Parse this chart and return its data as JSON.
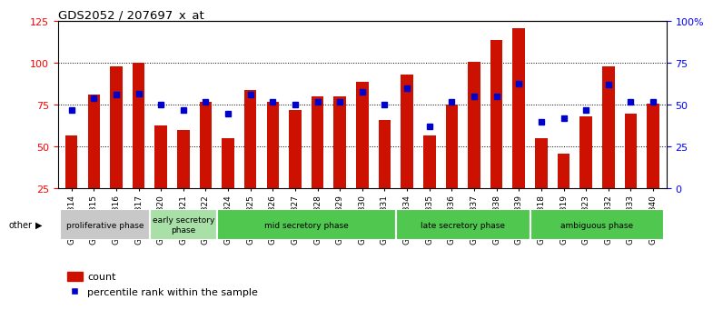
{
  "title": "GDS2052 / 207697_x_at",
  "samples": [
    "GSM109814",
    "GSM109815",
    "GSM109816",
    "GSM109817",
    "GSM109820",
    "GSM109821",
    "GSM109822",
    "GSM109824",
    "GSM109825",
    "GSM109826",
    "GSM109827",
    "GSM109828",
    "GSM109829",
    "GSM109830",
    "GSM109831",
    "GSM109834",
    "GSM109835",
    "GSM109836",
    "GSM109837",
    "GSM109838",
    "GSM109839",
    "GSM109818",
    "GSM109819",
    "GSM109823",
    "GSM109832",
    "GSM109833",
    "GSM109840"
  ],
  "counts": [
    57,
    81,
    98,
    100,
    63,
    60,
    77,
    55,
    84,
    77,
    72,
    80,
    80,
    89,
    66,
    93,
    57,
    75,
    101,
    114,
    121,
    55,
    46,
    68,
    98,
    70,
    76
  ],
  "percentiles": [
    47,
    54,
    56,
    57,
    50,
    47,
    52,
    45,
    56,
    52,
    50,
    52,
    52,
    58,
    50,
    60,
    37,
    52,
    55,
    55,
    63,
    40,
    42,
    47,
    62,
    52,
    52
  ],
  "phases": [
    {
      "label": "proliferative phase",
      "start": 0,
      "end": 4,
      "color": "#c8c8c8"
    },
    {
      "label": "early secretory\nphase",
      "start": 4,
      "end": 7,
      "color": "#a8e0a8"
    },
    {
      "label": "mid secretory phase",
      "start": 7,
      "end": 15,
      "color": "#50c850"
    },
    {
      "label": "late secretory phase",
      "start": 15,
      "end": 21,
      "color": "#50c850"
    },
    {
      "label": "ambiguous phase",
      "start": 21,
      "end": 27,
      "color": "#50c850"
    }
  ],
  "bar_color": "#cc1100",
  "marker_color": "#0000cc",
  "left_ylim": [
    25,
    125
  ],
  "right_ylim": [
    0,
    100
  ],
  "left_yticks": [
    25,
    50,
    75,
    100,
    125
  ],
  "right_yticks": [
    0,
    25,
    50,
    75,
    100
  ],
  "right_yticklabels": [
    "0",
    "25",
    "50",
    "75",
    "100%"
  ],
  "grid_values": [
    50,
    75,
    100
  ],
  "bar_width": 0.55
}
